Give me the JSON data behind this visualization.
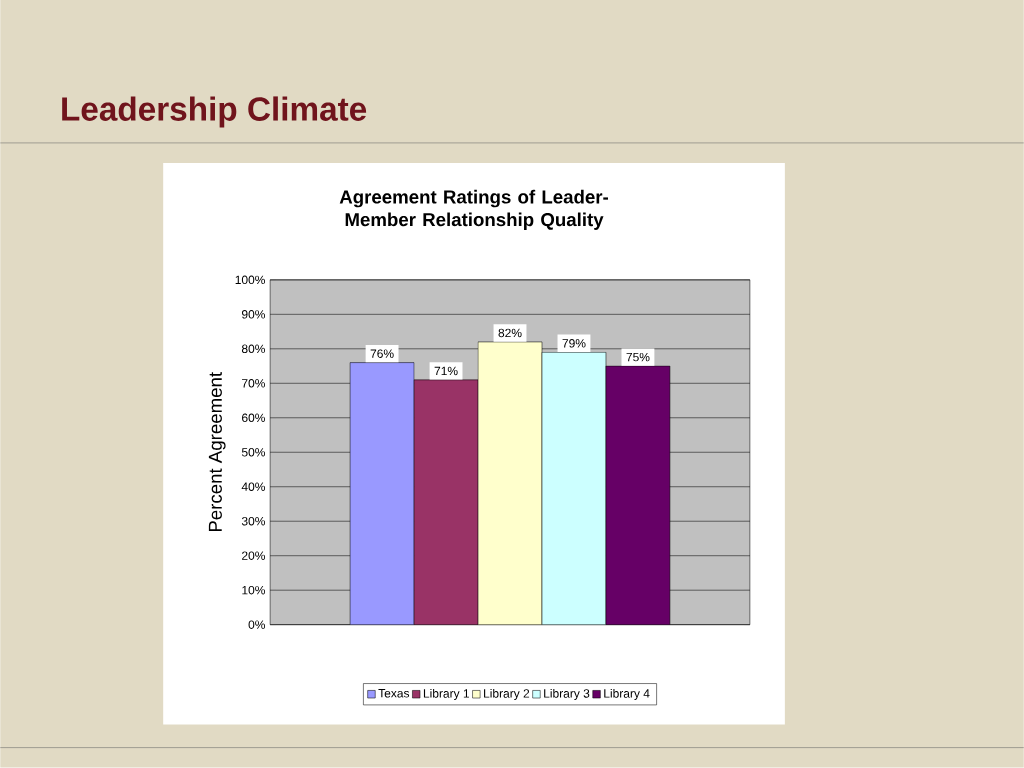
{
  "chart_data": {
    "type": "bar",
    "title": "Leadership Climate",
    "subtitle": "Agreement Ratings of Leader-Member Relationship Quality",
    "ylabel": "Percent Agreement",
    "categories": [
      null
    ],
    "series": [
      {
        "name": "Texas",
        "color": "#9999ff",
        "values": [
          76
        ],
        "value_labels": [
          "76%"
        ]
      },
      {
        "name": "Library 1",
        "color": "#993366",
        "values": [
          71
        ],
        "value_labels": [
          "71%"
        ]
      },
      {
        "name": "Library 2",
        "color": "#ffffcc",
        "values": [
          82
        ],
        "value_labels": [
          "82%"
        ]
      },
      {
        "name": "Library 3",
        "color": "#ccffff",
        "values": [
          79
        ],
        "value_labels": [
          "79%"
        ]
      },
      {
        "name": "Library 4",
        "color": "#660066",
        "values": [
          75
        ],
        "value_labels": [
          "75%"
        ]
      }
    ],
    "ylim": [
      0,
      100
    ],
    "yticks": [
      {
        "value": 0,
        "label": "0%"
      },
      {
        "value": 10,
        "label": "10%"
      },
      {
        "value": 20,
        "label": "20%"
      },
      {
        "value": 30,
        "label": "30%"
      },
      {
        "value": 40,
        "label": "40%"
      },
      {
        "value": 50,
        "label": "50%"
      },
      {
        "value": 60,
        "label": "60%"
      },
      {
        "value": 70,
        "label": "70%"
      },
      {
        "value": 80,
        "label": "80%"
      },
      {
        "value": 90,
        "label": "90%"
      },
      {
        "value": 100,
        "label": "100%"
      }
    ],
    "grid": "y",
    "legend": "bottom"
  }
}
